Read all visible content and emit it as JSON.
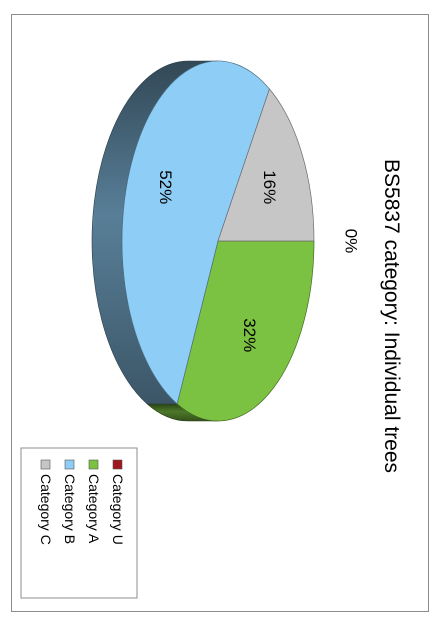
{
  "chart_data": {
    "type": "pie",
    "title": "BS5837 category: Individual trees",
    "categories": [
      "Category U",
      "Category A",
      "Category B",
      "Category C"
    ],
    "values": [
      0,
      32,
      52,
      16
    ],
    "data_labels": [
      "0%",
      "32%",
      "52%",
      "16%"
    ],
    "colors": {
      "Category U": "#a0141e",
      "Category A": "#7cc242",
      "Category B": "#8ecdf5",
      "Category C": "#c6c6c6"
    },
    "legend": "right",
    "orientation": "rotated 90° clockwise"
  }
}
